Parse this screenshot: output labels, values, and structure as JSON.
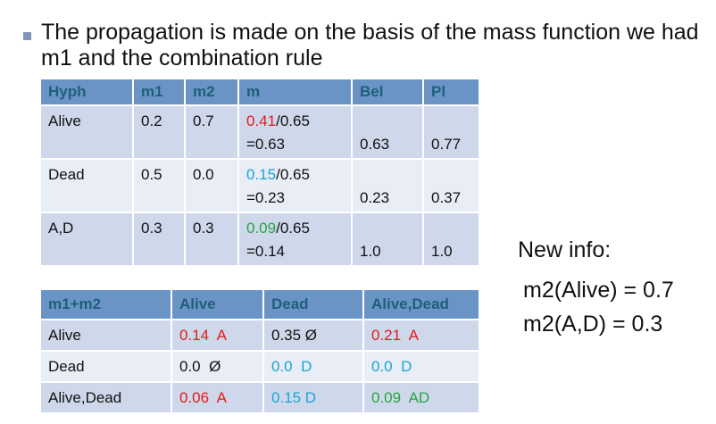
{
  "title": "The propagation is made on the basis of the mass function we had m1 and the combination rule",
  "table1": {
    "headers": [
      "Hyph",
      "m1",
      "m2",
      "m",
      "Bel",
      "Pl"
    ],
    "rows": [
      {
        "hyp": "Alive",
        "m1": "0.2",
        "m2": "0.7",
        "m_num": "0.41",
        "m_den": "/0.65",
        "m_res": "=0.63",
        "bel": "0.63",
        "pl": "0.77"
      },
      {
        "hyp": "Dead",
        "m1": "0.5",
        "m2": "0.0",
        "m_num": "0.15",
        "m_den": "/0.65",
        "m_res": "=0.23",
        "bel": "0.23",
        "pl": "0.37"
      },
      {
        "hyp": "A,D",
        "m1": "0.3",
        "m2": "0.3",
        "m_num": "0.09",
        "m_den": "/0.65",
        "m_res": "=0.14",
        "bel": "1.0",
        "pl": "1.0"
      }
    ]
  },
  "table2": {
    "headers": [
      "m1+m2",
      "Alive",
      "Dead",
      "Alive,Dead"
    ],
    "rows": [
      {
        "label": "Alive",
        "c1": "0.14  A",
        "c2": "0.35 Ø",
        "c3": "0.21  A"
      },
      {
        "label": "Dead",
        "c1": "0.0  Ø",
        "c2": "0.0  D",
        "c3": "0.0  D"
      },
      {
        "label": "Alive,Dead",
        "c1": "0.06  A",
        "c2": "0.15 D",
        "c3": "0.09  AD"
      }
    ]
  },
  "new_info": {
    "heading": "New info:",
    "line1": "m2(Alive) = 0.7",
    "line2": "m2(A,D) = 0.3"
  },
  "colors": {
    "header_bg": "#6b94c6",
    "row_dark": "#ced8ea",
    "row_light": "#e8edf6",
    "red": "#e21b1b",
    "blue": "#1ba3d9",
    "green": "#2aa341"
  }
}
